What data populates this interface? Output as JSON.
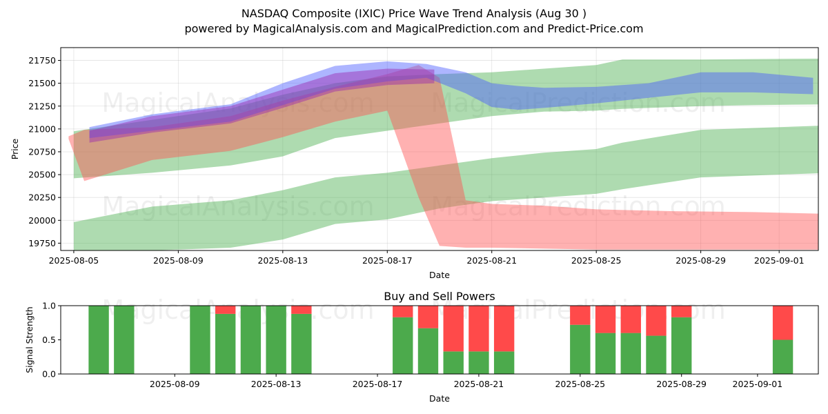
{
  "figure": {
    "title_line1": "NASDAQ Composite (IXIC) Price Wave Trend Analysis (Aug 30 )",
    "title_line2": "powered by MagicalAnalysis.com and MagicalPrediction.com and Predict-Price.com",
    "watermarks": [
      "MagicalAnalysis.com",
      "MagicalPrediction.com"
    ]
  },
  "chart_data": [
    {
      "type": "area",
      "name": "price-wave",
      "title": "",
      "xlabel": "Date",
      "ylabel": "Price",
      "x_start": "2025-08-05",
      "xlim": [
        -0.5,
        28.5
      ],
      "ylim": [
        19670,
        21890
      ],
      "x_ticks": [
        {
          "day": 0,
          "label": "2025-08-05"
        },
        {
          "day": 4,
          "label": "2025-08-09"
        },
        {
          "day": 8,
          "label": "2025-08-13"
        },
        {
          "day": 12,
          "label": "2025-08-17"
        },
        {
          "day": 16,
          "label": "2025-08-21"
        },
        {
          "day": 20,
          "label": "2025-08-25"
        },
        {
          "day": 24,
          "label": "2025-08-29"
        },
        {
          "day": 27,
          "label": "2025-09-01"
        }
      ],
      "y_ticks": [
        19750,
        20000,
        20250,
        20500,
        20750,
        21000,
        21250,
        21500,
        21750
      ],
      "grid": true,
      "series": [
        {
          "name": "green-band-upper",
          "color": "#4caf50",
          "opacity": 0.45,
          "x": [
            0,
            3,
            6,
            8,
            10,
            12,
            14,
            16,
            18,
            20,
            21,
            24,
            26,
            29
          ],
          "upper": [
            20975,
            21100,
            21225,
            21375,
            21500,
            21575,
            21600,
            21620,
            21660,
            21700,
            21760,
            21760,
            21765,
            21770
          ],
          "lower": [
            20460,
            20520,
            20600,
            20700,
            20900,
            20980,
            21060,
            21140,
            21190,
            21200,
            21220,
            21250,
            21260,
            21270
          ]
        },
        {
          "name": "green-band-middle",
          "color": "#4caf50",
          "opacity": 0.45,
          "x": [
            0,
            3,
            6,
            8,
            10,
            12,
            14,
            16,
            18,
            20,
            21,
            24,
            26,
            29
          ],
          "upper": [
            19980,
            20150,
            20220,
            20330,
            20470,
            20520,
            20600,
            20680,
            20740,
            20780,
            20850,
            20990,
            21010,
            21040
          ],
          "lower": [
            19670,
            19670,
            19700,
            19790,
            19960,
            20010,
            20130,
            20210,
            20250,
            20290,
            20340,
            20470,
            20490,
            20520
          ]
        },
        {
          "name": "red-band",
          "color": "#ff5252",
          "opacity": 0.45,
          "x": [
            -0.2,
            0.4,
            3,
            6,
            8,
            10,
            12,
            13.2,
            14.0,
            15.0,
            16,
            18,
            20,
            23,
            26,
            29
          ],
          "upper": [
            20920,
            20990,
            21020,
            21140,
            21310,
            21460,
            21600,
            21700,
            21560,
            20220,
            20180,
            20160,
            20120,
            20100,
            20090,
            20070
          ],
          "lower": [
            20890,
            20430,
            20660,
            20760,
            20910,
            21080,
            21200,
            20250,
            19720,
            19700,
            19700,
            19690,
            19680,
            19680,
            19680,
            19680
          ]
        },
        {
          "name": "blue-wave",
          "color": "#4a5cff",
          "opacity": 0.45,
          "x": [
            0.6,
            3,
            6,
            8,
            10,
            12,
            13.5,
            15,
            16,
            17,
            18,
            20,
            22,
            24,
            26,
            28.3
          ],
          "upper": [
            21020,
            21160,
            21270,
            21500,
            21690,
            21740,
            21710,
            21620,
            21500,
            21470,
            21450,
            21460,
            21500,
            21620,
            21620,
            21560
          ],
          "lower": [
            20900,
            20980,
            21080,
            21260,
            21440,
            21520,
            21560,
            21390,
            21240,
            21210,
            21230,
            21280,
            21340,
            21400,
            21400,
            21380
          ]
        },
        {
          "name": "purple-wave",
          "color": "#9c27b0",
          "opacity": 0.45,
          "x": [
            0.6,
            3,
            6,
            8,
            10,
            12,
            13.8
          ],
          "upper": [
            20980,
            21140,
            21250,
            21430,
            21610,
            21660,
            21650
          ],
          "lower": [
            20850,
            20960,
            21060,
            21230,
            21410,
            21480,
            21500
          ]
        }
      ]
    },
    {
      "type": "bar",
      "name": "buy-sell-powers",
      "title": "Buy and Sell Powers",
      "xlabel": "Date",
      "ylabel": "Signal Strength",
      "xlim": [
        -0.5,
        29.4
      ],
      "ylim": [
        0,
        1.0
      ],
      "y_ticks": [
        0.0,
        0.5,
        1.0
      ],
      "y_tick_labels": [
        "0.0",
        "0.5",
        "1.0"
      ],
      "x_ticks": [
        {
          "day": 4,
          "label": "2025-08-09"
        },
        {
          "day": 8,
          "label": "2025-08-13"
        },
        {
          "day": 12,
          "label": "2025-08-17"
        },
        {
          "day": 16,
          "label": "2025-08-21"
        },
        {
          "day": 20,
          "label": "2025-08-25"
        },
        {
          "day": 24,
          "label": "2025-08-29"
        },
        {
          "day": 27,
          "label": "2025-09-01"
        }
      ],
      "buy_color": "#4caa4c",
      "sell_color": "#ff4a4a",
      "series": [
        {
          "name": "Buy",
          "days": [
            1,
            2,
            5,
            6,
            7,
            8,
            9,
            13,
            14,
            15,
            16,
            17,
            20,
            21,
            22,
            23,
            24,
            28
          ],
          "values": [
            1.0,
            1.0,
            1.0,
            0.88,
            1.0,
            1.0,
            0.88,
            0.83,
            0.67,
            0.33,
            0.33,
            0.33,
            0.72,
            0.6,
            0.6,
            0.56,
            0.83,
            0.5
          ]
        },
        {
          "name": "Sell",
          "days": [
            1,
            2,
            5,
            6,
            7,
            8,
            9,
            13,
            14,
            15,
            16,
            17,
            20,
            21,
            22,
            23,
            24,
            28
          ],
          "values": [
            0.0,
            0.0,
            0.0,
            0.12,
            0.0,
            0.0,
            0.12,
            0.17,
            0.33,
            0.67,
            0.67,
            0.67,
            0.28,
            0.4,
            0.4,
            0.44,
            0.17,
            0.5
          ]
        }
      ]
    }
  ]
}
